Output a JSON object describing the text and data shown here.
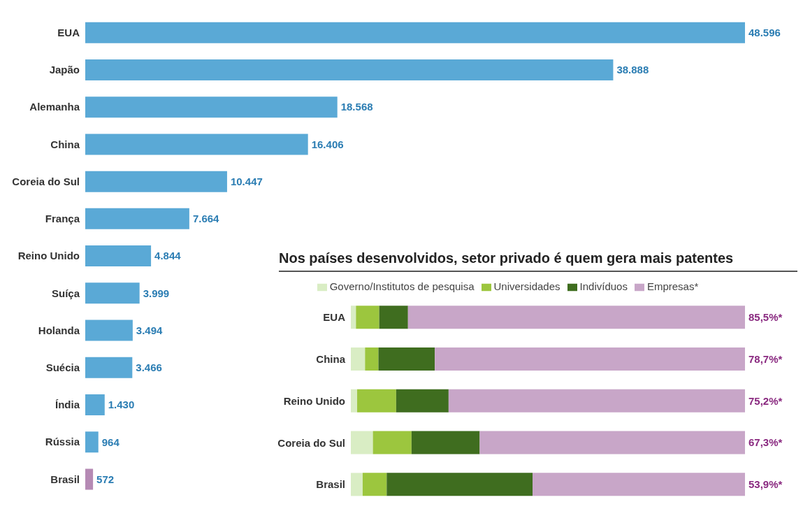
{
  "chart_data": [
    {
      "type": "bar",
      "orientation": "horizontal",
      "categories": [
        "EUA",
        "Japão",
        "Alemanha",
        "China",
        "Coreia do Sul",
        "França",
        "Reino Unido",
        "Suíça",
        "Holanda",
        "Suécia",
        "Índia",
        "Rússia",
        "Brasil"
      ],
      "values": [
        48596,
        38888,
        18568,
        16406,
        10447,
        7664,
        4844,
        3999,
        3494,
        3466,
        1430,
        964,
        572
      ],
      "value_labels": [
        "48.596",
        "38.888",
        "18.568",
        "16.406",
        "10.447",
        "7.664",
        "4.844",
        "3.999",
        "3.494",
        "3.466",
        "1.430",
        "964",
        "572"
      ],
      "colors": [
        "#5aa9d6",
        "#5aa9d6",
        "#5aa9d6",
        "#5aa9d6",
        "#5aa9d6",
        "#5aa9d6",
        "#5aa9d6",
        "#5aa9d6",
        "#5aa9d6",
        "#5aa9d6",
        "#5aa9d6",
        "#5aa9d6",
        "#b58ab4"
      ],
      "legend": false
    },
    {
      "type": "bar",
      "orientation": "horizontal",
      "stacked": true,
      "title": "Nos países desenvolvidos, setor privado é quem gera mais patentes",
      "legend": "top",
      "categories": [
        "EUA",
        "China",
        "Reino Unido",
        "Coreia do Sul",
        "Brasil"
      ],
      "series": [
        {
          "name": "Governo/Institutos de pesquisa",
          "color": "#d9edc4",
          "values": [
            1.3,
            3.6,
            1.6,
            5.6,
            3.0
          ]
        },
        {
          "name": "Universidades",
          "color": "#9cc63e",
          "values": [
            5.9,
            3.4,
            9.9,
            9.8,
            6.1
          ]
        },
        {
          "name": "Indivíduos",
          "color": "#3f6d1f",
          "values": [
            7.3,
            14.3,
            13.3,
            17.3,
            37.0
          ]
        },
        {
          "name": "Empresas*",
          "color": "#c8a6c8",
          "values": [
            85.5,
            78.7,
            75.2,
            67.3,
            53.9
          ],
          "value_labels": [
            "85,5%*",
            "78,7%*",
            "75,2%*",
            "67,3%*",
            "53,9%*"
          ]
        }
      ]
    }
  ]
}
